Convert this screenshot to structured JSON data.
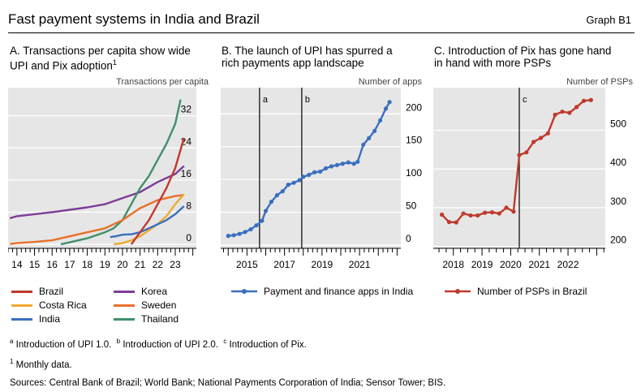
{
  "header": {
    "title": "Fast payment systems in India and Brazil",
    "graph_label": "Graph B1"
  },
  "panels": {
    "a": {
      "title_line1": "A. Transactions per capita show wide",
      "title_line2": "UPI and Pix adoption",
      "title_sup": "1",
      "unit": "Transactions per capita"
    },
    "b": {
      "title_line1": "B. The launch of UPI has spurred a",
      "title_line2": "rich payments app landscape",
      "unit": "Number of apps"
    },
    "c": {
      "title_line1": "C. Introduction of Pix has gone hand",
      "title_line2": "in hand with more PSPs",
      "unit": "Number of PSPs"
    }
  },
  "legend_a": [
    {
      "label": "Brazil",
      "color": "#c0392b"
    },
    {
      "label": "Korea",
      "color": "#7d3c98"
    },
    {
      "label": "Costa Rica",
      "color": "#f0a92e"
    },
    {
      "label": "Sweden",
      "color": "#e8702a"
    },
    {
      "label": "India",
      "color": "#3a6fbf"
    },
    {
      "label": "Thailand",
      "color": "#3f8f6a"
    }
  ],
  "legend_b": {
    "label": "Payment and finance apps in India",
    "color": "#3a6fbf"
  },
  "legend_c": {
    "label": "Number of PSPs in Brazil",
    "color": "#c0392b"
  },
  "footnotes": {
    "a_mark": "a",
    "a_text": "Introduction of UPI 1.0.",
    "b_mark": "b",
    "b_text": "Introduction of UPI 2.0.",
    "c_mark": "c",
    "c_text": "Introduction of Pix.",
    "n1_mark": "1",
    "n1_text": "Monthly data.",
    "sources": "Sources: Central Bank of Brazil; World Bank; National Payments Corporation of India; Sensor Tower; BIS."
  },
  "chart_data": [
    {
      "id": "panel-a",
      "type": "line",
      "title": "A. Transactions per capita show wide UPI and Pix adoption",
      "ylabel": "Transactions per capita",
      "x_range": [
        2013.5,
        2024.2
      ],
      "ylim": [
        -1,
        39
      ],
      "x_ticks": [
        2014,
        2015,
        2016,
        2017,
        2018,
        2019,
        2020,
        2021,
        2022,
        2023
      ],
      "x_tick_labels": [
        "14",
        "15",
        "16",
        "17",
        "18",
        "19",
        "20",
        "21",
        "22",
        "23"
      ],
      "y_ticks": [
        0,
        8,
        16,
        24,
        32
      ],
      "y_tick_labels": [
        "0",
        "8",
        "16",
        "24",
        "32"
      ],
      "series": [
        {
          "name": "Korea",
          "color": "#7d3c98",
          "x": [
            2013.6,
            2014,
            2015,
            2016,
            2017,
            2018,
            2019,
            2020,
            2021,
            2022,
            2023,
            2023.5
          ],
          "y": [
            6.5,
            7,
            7.5,
            8,
            8.6,
            9.2,
            10,
            11.5,
            13,
            15.5,
            17.5,
            19.5
          ]
        },
        {
          "name": "Thailand",
          "color": "#3f8f6a",
          "x": [
            2016.5,
            2017,
            2018,
            2019,
            2019.5,
            2020,
            2020.5,
            2021,
            2021.5,
            2022,
            2022.5,
            2023,
            2023.3
          ],
          "y": [
            0,
            0.5,
            1.5,
            3,
            4,
            6,
            10,
            14,
            17,
            21,
            25,
            30,
            36
          ]
        },
        {
          "name": "Sweden",
          "color": "#e8702a",
          "x": [
            2013.6,
            2014,
            2015,
            2016,
            2017,
            2018,
            2019,
            2020,
            2021,
            2022,
            2023,
            2023.5
          ],
          "y": [
            0.1,
            0.3,
            0.6,
            1,
            2,
            3,
            4,
            6,
            9,
            11,
            12,
            12.3
          ]
        },
        {
          "name": "Costa Rica",
          "color": "#f0a92e",
          "x": [
            2019.5,
            2020,
            2020.5,
            2021,
            2021.5,
            2022,
            2022.5,
            2023,
            2023.5
          ],
          "y": [
            0,
            0.3,
            1,
            2,
            3.5,
            5,
            7,
            10,
            12.5
          ]
        },
        {
          "name": "India",
          "color": "#3a6fbf",
          "x": [
            2019.3,
            2019.6,
            2020,
            2020.5,
            2021,
            2021.5,
            2022,
            2022.5,
            2023,
            2023.5
          ],
          "y": [
            1.8,
            2,
            2.4,
            2.5,
            3,
            4,
            5,
            6,
            7.5,
            9.5
          ]
        },
        {
          "name": "Brazil",
          "color": "#c0392b",
          "x": [
            2020.5,
            2021,
            2021.5,
            2022,
            2022.5,
            2023,
            2023.5
          ],
          "y": [
            0,
            3,
            6,
            10,
            14,
            19,
            26.5
          ]
        }
      ]
    },
    {
      "id": "panel-b",
      "type": "line",
      "title": "B. The launch of UPI has spurred a rich payments app landscape",
      "ylabel": "Number of apps",
      "x_range": [
        2013.6,
        2023.2
      ],
      "ylim": [
        -5,
        240
      ],
      "x_ticks": [
        2015,
        2017,
        2019,
        2021
      ],
      "x_tick_labels": [
        "2015",
        "2017",
        "2019",
        "2021"
      ],
      "y_ticks": [
        0,
        50,
        100,
        150,
        200
      ],
      "y_tick_labels": [
        "0",
        "50",
        "100",
        "150",
        "200"
      ],
      "vlines": [
        {
          "x": 2015.67,
          "label": "a"
        },
        {
          "x": 2017.92,
          "label": "b"
        }
      ],
      "series": [
        {
          "name": "Payment and finance apps in India",
          "color": "#3a6fbf",
          "x": [
            2014,
            2014.3,
            2014.6,
            2014.9,
            2015.2,
            2015.5,
            2015.8,
            2016,
            2016.3,
            2016.6,
            2016.9,
            2017.2,
            2017.5,
            2017.8,
            2018,
            2018.3,
            2018.6,
            2018.9,
            2019.2,
            2019.5,
            2019.8,
            2020.1,
            2020.4,
            2020.7,
            2020.9,
            2021.2,
            2021.5,
            2021.8,
            2022.1,
            2022.4,
            2022.6
          ],
          "y": [
            14,
            15,
            17,
            20,
            24,
            30,
            37,
            52,
            66,
            76,
            82,
            92,
            95,
            99,
            104,
            107,
            111,
            112,
            117,
            120,
            122,
            124,
            126,
            124,
            127,
            153,
            163,
            174,
            190,
            208,
            218
          ]
        }
      ]
    },
    {
      "id": "panel-c",
      "type": "line",
      "title": "C. Introduction of Pix has gone hand in hand with more PSPs",
      "ylabel": "Number of PSPs",
      "x_range": [
        2017.3,
        2023.3
      ],
      "ylim": [
        195,
        610
      ],
      "x_ticks": [
        2018,
        2019,
        2020,
        2021,
        2022
      ],
      "x_tick_labels": [
        "2018",
        "2019",
        "2020",
        "2021",
        "2022"
      ],
      "y_ticks": [
        200,
        300,
        400,
        500
      ],
      "y_tick_labels": [
        "200",
        "300",
        "400",
        "500"
      ],
      "vlines": [
        {
          "x": 2020.3,
          "label": "c"
        }
      ],
      "series": [
        {
          "name": "Number of PSPs in Brazil",
          "color": "#c0392b",
          "x": [
            2017.6,
            2017.85,
            2018.1,
            2018.35,
            2018.6,
            2018.85,
            2019.1,
            2019.35,
            2019.6,
            2019.85,
            2020.1,
            2020.3,
            2020.55,
            2020.8,
            2021.05,
            2021.3,
            2021.55,
            2021.8,
            2022.05,
            2022.3,
            2022.55,
            2022.8
          ],
          "y": [
            282,
            263,
            262,
            285,
            280,
            280,
            287,
            288,
            285,
            300,
            290,
            436,
            443,
            470,
            480,
            492,
            540,
            548,
            545,
            560,
            576,
            578
          ]
        }
      ]
    }
  ]
}
